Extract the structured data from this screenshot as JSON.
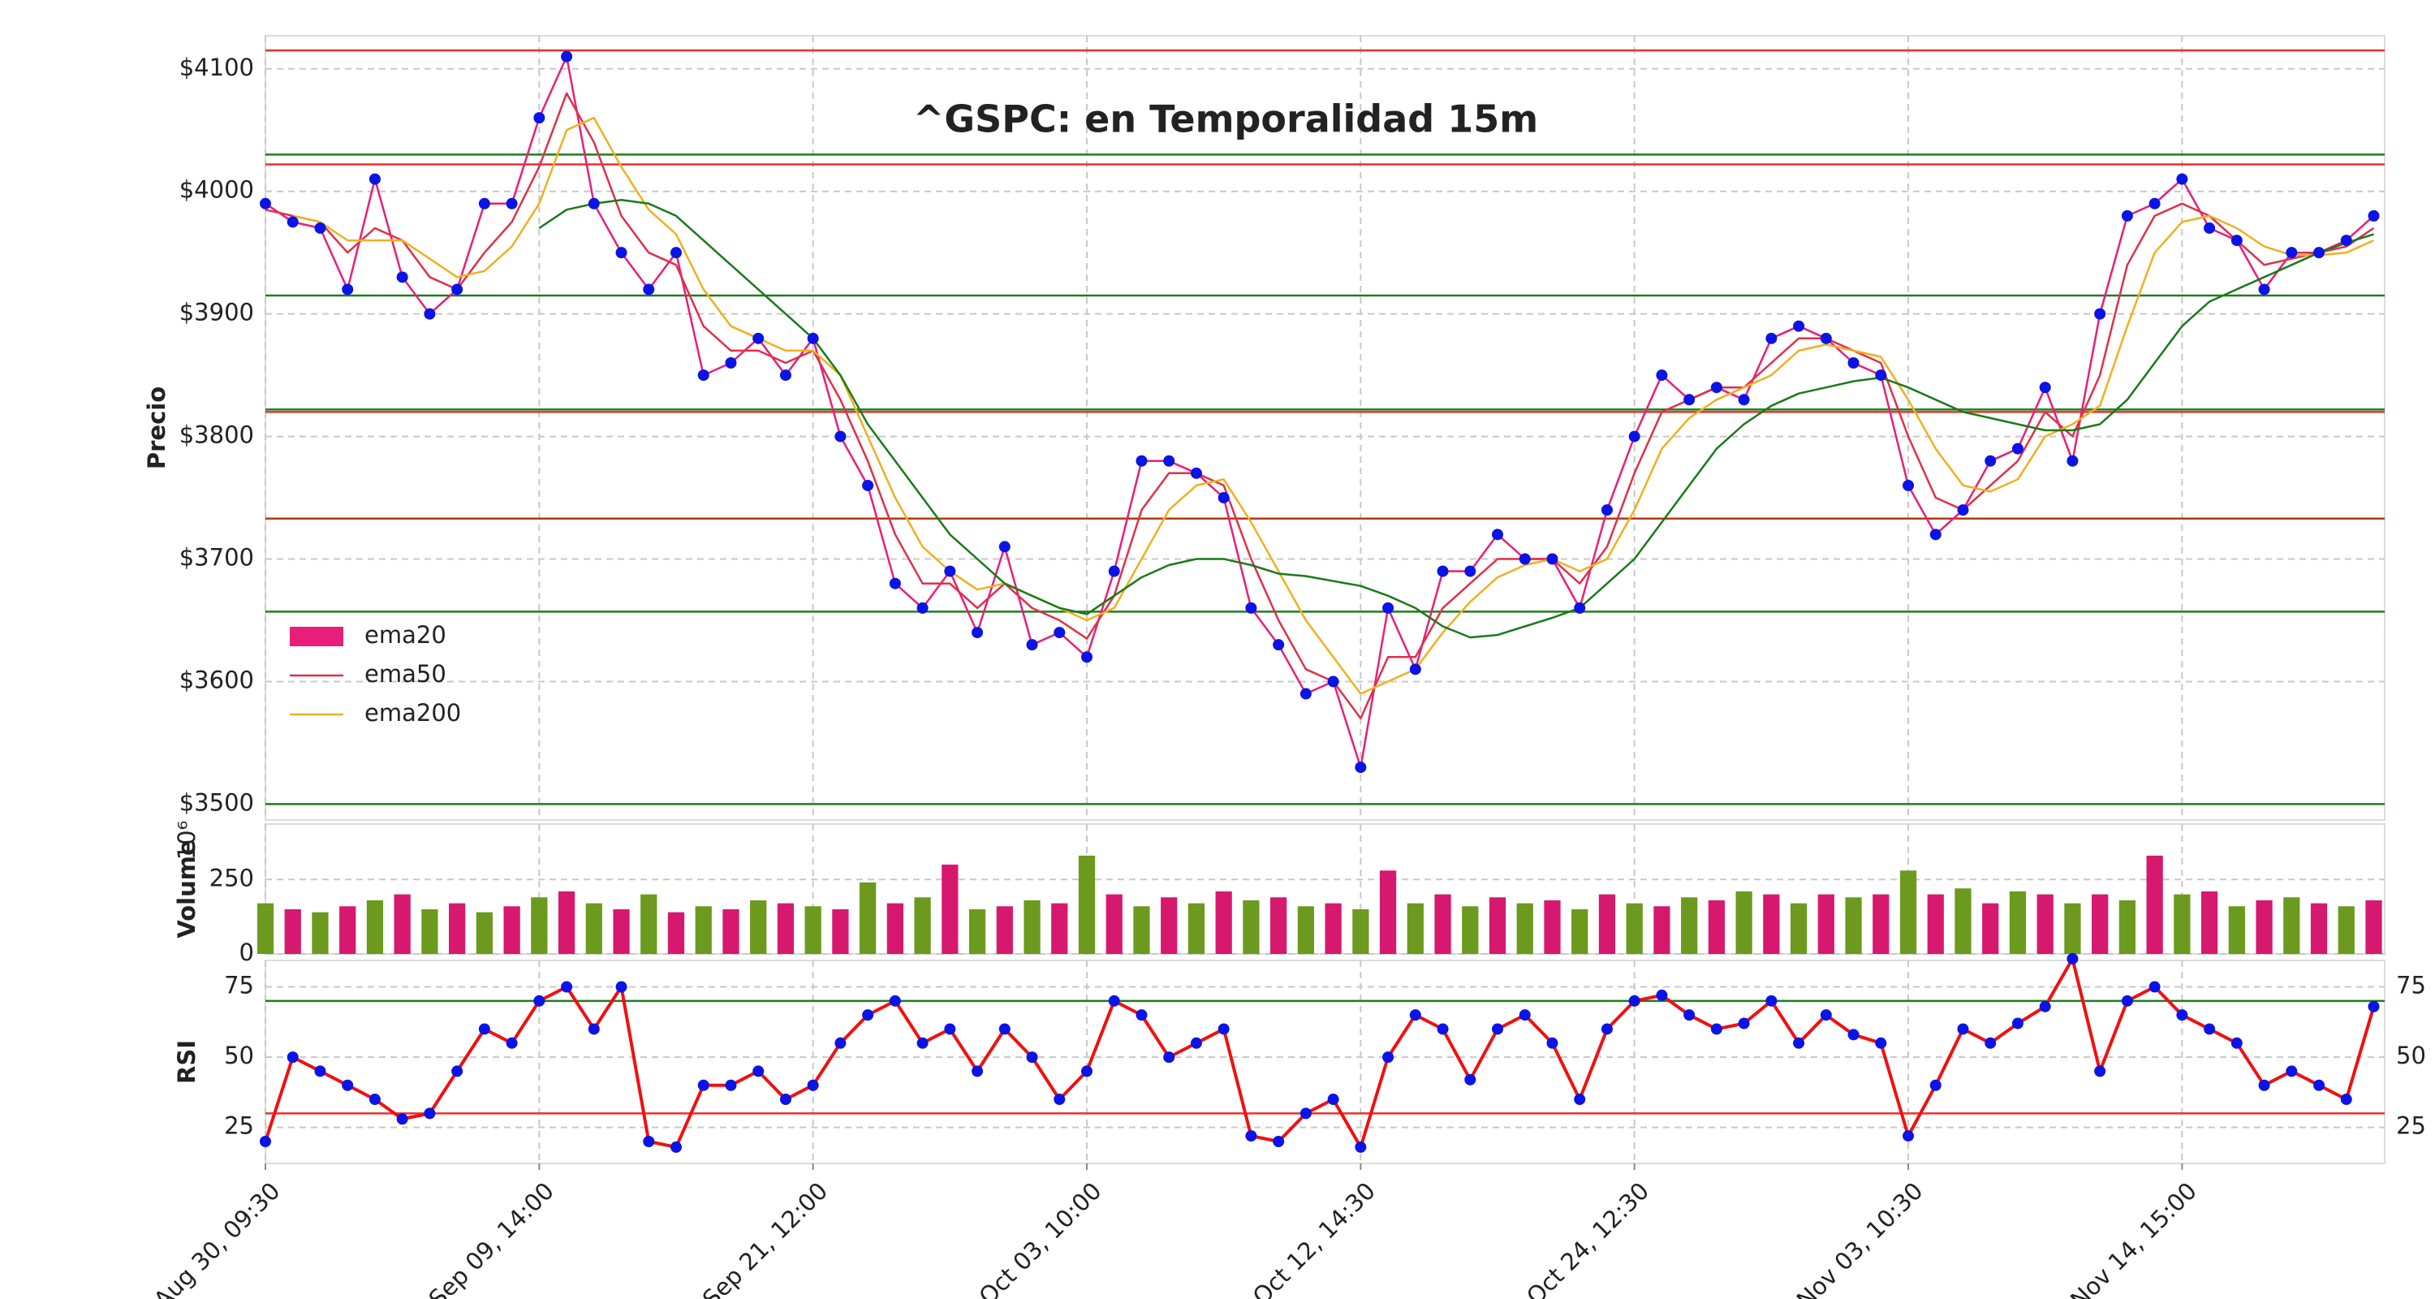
{
  "chart_data": [
    {
      "type": "line",
      "title": "^GSPC: en Temporalidad 15m",
      "ylabel": "Precio",
      "x": [
        0,
        10,
        20,
        30,
        40,
        50,
        60,
        70,
        80,
        90,
        100,
        110,
        120,
        130,
        140,
        150,
        160,
        170,
        180,
        190,
        200,
        210,
        220,
        230,
        240,
        250,
        260,
        270,
        280,
        290,
        300,
        310,
        320,
        330,
        340,
        350,
        360,
        370,
        380,
        390,
        400,
        410,
        420,
        430,
        440,
        450,
        460,
        470,
        480,
        490,
        500,
        510,
        520,
        530,
        540,
        550,
        560,
        570,
        580,
        590,
        600,
        610,
        620,
        630,
        640,
        650,
        660,
        670,
        680,
        690,
        700,
        710,
        720,
        730,
        740,
        750,
        760,
        770
      ],
      "xlim": [
        0,
        774
      ],
      "xticks": [
        {
          "value": 0,
          "label": "Aug 30, 09:30"
        },
        {
          "value": 100,
          "label": "Sep 09, 14:00"
        },
        {
          "value": 200,
          "label": "Sep 21, 12:00"
        },
        {
          "value": 300,
          "label": "Oct 03, 10:00"
        },
        {
          "value": 400,
          "label": "Oct 12, 14:30"
        },
        {
          "value": 500,
          "label": "Oct 24, 12:30"
        },
        {
          "value": 600,
          "label": "Nov 03, 10:30"
        },
        {
          "value": 700,
          "label": "Nov 14, 15:00"
        }
      ],
      "ylim": [
        3487,
        4127
      ],
      "yticks": [
        {
          "value": 3500,
          "label": "$3500"
        },
        {
          "value": 3600,
          "label": "$3600"
        },
        {
          "value": 3700,
          "label": "$3700"
        },
        {
          "value": 3800,
          "label": "$3800"
        },
        {
          "value": 3900,
          "label": "$3900"
        },
        {
          "value": 4000,
          "label": "$4000"
        },
        {
          "value": 4100,
          "label": "$4100"
        }
      ],
      "grid": true,
      "legend": "lower left",
      "marker_color": "#0a14e6",
      "hlines": [
        {
          "value": 4115,
          "color": "#e8302a"
        },
        {
          "value": 4030,
          "color": "#1e7d1e"
        },
        {
          "value": 4022,
          "color": "#e8302a"
        },
        {
          "value": 3915,
          "color": "#1e7d1e"
        },
        {
          "value": 3822,
          "color": "#1e7d1e"
        },
        {
          "value": 3820,
          "color": "#e8302a"
        },
        {
          "value": 3733,
          "color": "#b03a10"
        },
        {
          "value": 3657,
          "color": "#1e7d1e"
        },
        {
          "value": 3500,
          "color": "#1e7d1e"
        }
      ],
      "series": [
        {
          "name": "ema20",
          "color": "#e91e7a",
          "legend_patch": true,
          "markers": true,
          "values": [
            3990,
            3975,
            3970,
            3920,
            4010,
            3930,
            3900,
            3920,
            3990,
            3990,
            4060,
            4110,
            3990,
            3950,
            3920,
            3950,
            3850,
            3860,
            3880,
            3850,
            3880,
            3800,
            3760,
            3680,
            3660,
            3690,
            3640,
            3710,
            3630,
            3640,
            3620,
            3690,
            3780,
            3780,
            3770,
            3750,
            3660,
            3630,
            3590,
            3600,
            3530,
            3660,
            3610,
            3690,
            3690,
            3720,
            3700,
            3700,
            3660,
            3740,
            3800,
            3850,
            3830,
            3840,
            3830,
            3880,
            3890,
            3880,
            3860,
            3850,
            3760,
            3720,
            3740,
            3780,
            3790,
            3840,
            3780,
            3900,
            3980,
            3990,
            4010,
            3970,
            3960,
            3920,
            3950,
            3950,
            3960,
            3980
          ]
        },
        {
          "name": "ema50",
          "color": "#e0304a",
          "values": [
            3985,
            3980,
            3975,
            3950,
            3970,
            3960,
            3930,
            3920,
            3950,
            3975,
            4020,
            4080,
            4040,
            3980,
            3950,
            3940,
            3890,
            3870,
            3870,
            3860,
            3870,
            3830,
            3780,
            3720,
            3680,
            3680,
            3660,
            3680,
            3660,
            3650,
            3635,
            3670,
            3740,
            3770,
            3770,
            3760,
            3700,
            3650,
            3610,
            3600,
            3570,
            3620,
            3620,
            3660,
            3680,
            3700,
            3700,
            3700,
            3680,
            3710,
            3770,
            3820,
            3830,
            3840,
            3840,
            3860,
            3880,
            3880,
            3870,
            3860,
            3800,
            3750,
            3740,
            3760,
            3780,
            3820,
            3800,
            3850,
            3940,
            3980,
            3990,
            3980,
            3960,
            3940,
            3945,
            3950,
            3955,
            3970
          ]
        },
        {
          "name": "ema200",
          "color": "#f0b020",
          "values": [
            null,
            3980,
            3975,
            3960,
            3960,
            3960,
            3945,
            3930,
            3935,
            3955,
            3990,
            4050,
            4060,
            4020,
            3985,
            3965,
            3920,
            3890,
            3880,
            3870,
            3870,
            3850,
            3800,
            3750,
            3710,
            3690,
            3675,
            3680,
            3670,
            3660,
            3650,
            3660,
            3700,
            3740,
            3760,
            3765,
            3730,
            3690,
            3650,
            3620,
            3590,
            3600,
            3610,
            3640,
            3665,
            3685,
            3695,
            3700,
            3690,
            3700,
            3740,
            3790,
            3815,
            3830,
            3840,
            3850,
            3870,
            3875,
            3870,
            3865,
            3830,
            3790,
            3760,
            3755,
            3765,
            3800,
            3810,
            3825,
            3890,
            3950,
            3975,
            3980,
            3970,
            3955,
            3948,
            3948,
            3950,
            3960
          ]
        },
        {
          "color": "#1a7a1a",
          "values": [
            null,
            null,
            null,
            null,
            null,
            null,
            null,
            null,
            null,
            null,
            3970,
            3985,
            3990,
            3993,
            3990,
            3980,
            3960,
            3940,
            3920,
            3900,
            3880,
            3850,
            3810,
            3780,
            3750,
            3720,
            3700,
            3680,
            3670,
            3660,
            3655,
            3670,
            3685,
            3695,
            3700,
            3700,
            3695,
            3688,
            3686,
            3682,
            3678,
            3670,
            3660,
            3645,
            3636,
            3638,
            3645,
            3652,
            3660,
            3680,
            3700,
            3730,
            3760,
            3790,
            3810,
            3825,
            3835,
            3840,
            3845,
            3848,
            3840,
            3830,
            3820,
            3815,
            3810,
            3805,
            3805,
            3810,
            3830,
            3860,
            3890,
            3910,
            3920,
            3930,
            3940,
            3950,
            3958,
            3965
          ]
        }
      ]
    },
    {
      "type": "bar",
      "ylabel": "Volume",
      "offset_label": "10⁶",
      "ylim": [
        0,
        436
      ],
      "yticks": [
        0,
        250
      ],
      "grid": true,
      "colors": [
        "#6b9a1e",
        "#d6196e"
      ],
      "values": [
        170,
        150,
        140,
        160,
        180,
        200,
        150,
        170,
        140,
        160,
        190,
        210,
        170,
        150,
        200,
        140,
        160,
        150,
        180,
        170,
        160,
        150,
        240,
        170,
        190,
        300,
        150,
        160,
        180,
        170,
        330,
        200,
        160,
        190,
        170,
        210,
        180,
        190,
        160,
        170,
        150,
        280,
        170,
        200,
        160,
        190,
        170,
        180,
        150,
        200,
        170,
        160,
        190,
        180,
        210,
        200,
        170,
        200,
        190,
        200,
        280,
        200,
        220,
        170,
        210,
        200,
        170,
        200,
        180,
        330,
        200,
        210,
        160,
        180,
        190,
        170,
        160,
        180
      ]
    },
    {
      "type": "line",
      "ylabel": "RSI",
      "ylim": [
        12.2,
        84.4
      ],
      "yticks": [
        25,
        50,
        75
      ],
      "grid": true,
      "right_ticks": true,
      "marker_color": "#0a14e6",
      "hlines": [
        {
          "value": 70,
          "color": "#1e7d1e"
        },
        {
          "value": 30,
          "color": "#e8302a"
        }
      ],
      "series": [
        {
          "color": "#f01010",
          "markers": true,
          "values": [
            20,
            50,
            45,
            40,
            35,
            28,
            30,
            45,
            60,
            55,
            70,
            75,
            60,
            75,
            20,
            18,
            40,
            40,
            45,
            35,
            40,
            55,
            65,
            70,
            55,
            60,
            45,
            60,
            50,
            35,
            45,
            70,
            65,
            50,
            55,
            60,
            22,
            20,
            30,
            35,
            18,
            50,
            65,
            60,
            42,
            60,
            65,
            55,
            35,
            60,
            70,
            72,
            65,
            60,
            62,
            70,
            55,
            65,
            58,
            55,
            22,
            40,
            60,
            55,
            62,
            68,
            85,
            45,
            70,
            75,
            65,
            60,
            55,
            40,
            45,
            40,
            35,
            68
          ]
        }
      ]
    }
  ]
}
